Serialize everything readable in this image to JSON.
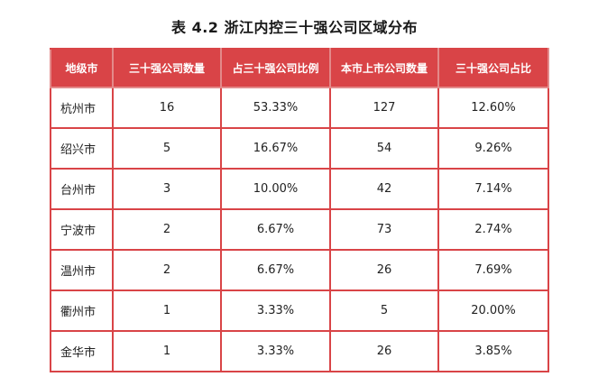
{
  "title": "表 4.2  浙江内控三十强公司区域分布",
  "table": {
    "headers": [
      "地级市",
      "三十强公司数量",
      "占三十强公司比例",
      "本市上市公司数量",
      "三十强公司占比"
    ],
    "rows": [
      [
        "杭州市",
        "16",
        "53.33%",
        "127",
        "12.60%"
      ],
      [
        "绍兴市",
        "5",
        "16.67%",
        "54",
        "9.26%"
      ],
      [
        "台州市",
        "3",
        "10.00%",
        "42",
        "7.14%"
      ],
      [
        "宁波市",
        "2",
        "6.67%",
        "73",
        "2.74%"
      ],
      [
        "温州市",
        "2",
        "6.67%",
        "26",
        "7.69%"
      ],
      [
        "衢州市",
        "1",
        "3.33%",
        "5",
        "20.00%"
      ],
      [
        "金华市",
        "1",
        "3.33%",
        "26",
        "3.85%"
      ]
    ]
  },
  "colors": {
    "header_bg": "#d94447",
    "border": "#d94447",
    "header_text": "#ffffff"
  }
}
